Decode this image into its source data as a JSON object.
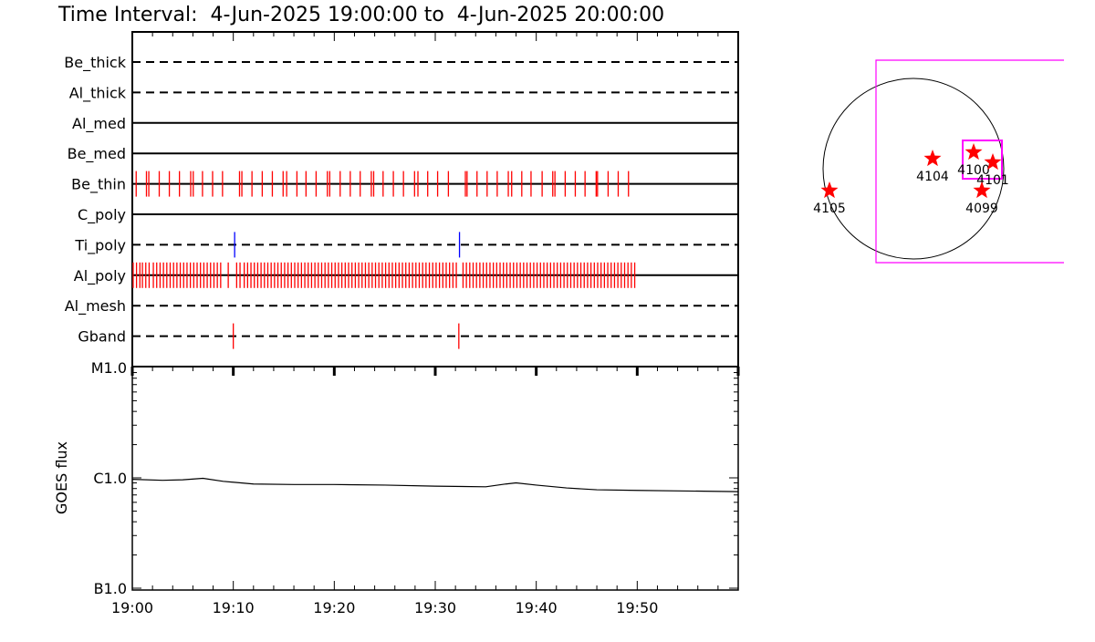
{
  "title": "Time Interval:  4-Jun-2025 19:00:00 to  4-Jun-2025 20:00:00",
  "colors": {
    "obs_tick": "#ff0000",
    "ti_tick": "#0000ff",
    "fov_box": "#ff00ff",
    "star": "#ff0000"
  },
  "chart_data": [
    {
      "type": "timeline",
      "x_range": [
        "19:00",
        "20:00"
      ],
      "x_tick_labels": [
        "19:00",
        "19:10",
        "19:20",
        "19:30",
        "19:40",
        "19:50"
      ],
      "rows": [
        {
          "name": "Be_thick",
          "line": "dashed",
          "times": []
        },
        {
          "name": "Al_thick",
          "line": "dashed",
          "times": []
        },
        {
          "name": "Al_med",
          "line": "solid",
          "times": []
        },
        {
          "name": "Be_med",
          "line": "solid",
          "times": []
        },
        {
          "name": "Be_thin",
          "line": "solid",
          "color": "#ff0000",
          "times": [
            "19:00:23",
            "19:01:24",
            "19:01:38",
            "19:02:40",
            "19:03:40",
            "19:04:40",
            "19:05:47",
            "19:06:02",
            "19:06:57",
            "19:07:57",
            "19:08:56",
            "19:10:37",
            "19:10:51",
            "19:11:51",
            "19:12:52",
            "19:13:52",
            "19:14:56",
            "19:15:17",
            "19:16:18",
            "19:17:12",
            "19:18:12",
            "19:19:19",
            "19:19:33",
            "19:20:35",
            "19:21:35",
            "19:22:34",
            "19:23:40",
            "19:23:54",
            "19:24:50",
            "19:25:51",
            "19:26:51",
            "19:27:57",
            "19:28:17",
            "19:29:15",
            "19:30:14",
            "19:31:18",
            "19:32:59",
            "19:33:09",
            "19:34:08",
            "19:35:08",
            "19:36:08",
            "19:37:14",
            "19:37:34",
            "19:38:34",
            "19:39:29",
            "19:40:35",
            "19:41:38",
            "19:41:51",
            "19:42:52",
            "19:43:52",
            "19:44:50",
            "19:45:56",
            "19:46:04",
            "19:47:07",
            "19:48:07",
            "19:49:08"
          ]
        },
        {
          "name": "C_poly",
          "line": "solid",
          "times": []
        },
        {
          "name": "Ti_poly",
          "line": "dashed",
          "color": "#0000ff",
          "times": [
            "19:10:08",
            "19:32:24"
          ]
        },
        {
          "name": "Al_poly",
          "line": "solid",
          "color": "#ff0000",
          "times": [
            "19:00:05",
            "19:00:25",
            "19:00:45",
            "19:01:00",
            "19:01:20",
            "19:01:40",
            "19:02:05",
            "19:02:25",
            "19:02:45",
            "19:03:05",
            "19:03:25",
            "19:03:45",
            "19:04:05",
            "19:04:25",
            "19:04:45",
            "19:05:05",
            "19:05:25",
            "19:05:45",
            "19:06:05",
            "19:06:25",
            "19:06:45",
            "19:07:05",
            "19:07:25",
            "19:07:45",
            "19:08:05",
            "19:08:25",
            "19:08:45",
            "19:09:30",
            "19:10:20",
            "19:10:40",
            "19:11:05",
            "19:11:25",
            "19:11:45",
            "19:12:05",
            "19:12:25",
            "19:12:45",
            "19:13:05",
            "19:13:25",
            "19:13:45",
            "19:14:05",
            "19:14:25",
            "19:14:45",
            "19:15:05",
            "19:15:25",
            "19:15:45",
            "19:16:05",
            "19:16:25",
            "19:16:45",
            "19:17:05",
            "19:17:25",
            "19:17:45",
            "19:18:05",
            "19:18:25",
            "19:18:45",
            "19:19:05",
            "19:19:25",
            "19:19:45",
            "19:20:05",
            "19:20:25",
            "19:20:45",
            "19:21:05",
            "19:21:25",
            "19:21:45",
            "19:22:05",
            "19:22:25",
            "19:22:45",
            "19:23:05",
            "19:23:25",
            "19:23:45",
            "19:24:05",
            "19:24:25",
            "19:24:45",
            "19:25:05",
            "19:25:25",
            "19:25:45",
            "19:26:05",
            "19:26:25",
            "19:26:45",
            "19:27:05",
            "19:27:25",
            "19:27:45",
            "19:28:05",
            "19:28:25",
            "19:28:45",
            "19:29:05",
            "19:29:25",
            "19:29:45",
            "19:30:05",
            "19:30:25",
            "19:30:45",
            "19:31:05",
            "19:31:25",
            "19:31:45",
            "19:32:05",
            "19:32:45",
            "19:33:05",
            "19:33:25",
            "19:33:45",
            "19:34:05",
            "19:34:25",
            "19:34:45",
            "19:35:05",
            "19:35:25",
            "19:35:45",
            "19:36:05",
            "19:36:25",
            "19:36:45",
            "19:37:05",
            "19:37:25",
            "19:37:45",
            "19:38:05",
            "19:38:25",
            "19:38:45",
            "19:39:05",
            "19:39:25",
            "19:39:45",
            "19:40:05",
            "19:40:25",
            "19:40:45",
            "19:41:05",
            "19:41:25",
            "19:41:45",
            "19:42:05",
            "19:42:25",
            "19:42:45",
            "19:43:05",
            "19:43:25",
            "19:43:45",
            "19:44:05",
            "19:44:25",
            "19:44:45",
            "19:45:05",
            "19:45:25",
            "19:45:45",
            "19:46:05",
            "19:46:25",
            "19:46:45",
            "19:47:05",
            "19:47:25",
            "19:47:45",
            "19:48:05",
            "19:48:25",
            "19:48:45",
            "19:49:05",
            "19:49:25",
            "19:49:45"
          ]
        },
        {
          "name": "Al_mesh",
          "line": "dashed",
          "times": []
        },
        {
          "name": "Gband",
          "line": "dashed",
          "color": "#ff0000",
          "times": [
            "19:10:00",
            "19:32:20"
          ]
        }
      ]
    },
    {
      "type": "line",
      "ylabel": "GOES flux",
      "y_scale": "log",
      "ylim": [
        1e-07,
        1e-05
      ],
      "y_tick_labels": [
        "B1.0",
        "C1.0",
        "M1.0"
      ],
      "x_tick_labels": [
        "19:00",
        "19:10",
        "19:20",
        "19:30",
        "19:40",
        "19:50"
      ],
      "series": [
        {
          "x": [
            "19:00",
            "19:03",
            "19:05",
            "19:07",
            "19:09",
            "19:12",
            "19:16",
            "19:20",
            "19:25",
            "19:30",
            "19:35",
            "19:37",
            "19:38",
            "19:40",
            "19:43",
            "19:46",
            "19:50",
            "19:55",
            "20:00"
          ],
          "y": [
            9.7e-07,
            9.5e-07,
            9.6e-07,
            9.9e-07,
            9.3e-07,
            8.8e-07,
            8.7e-07,
            8.7e-07,
            8.6e-07,
            8.4e-07,
            8.3e-07,
            8.8e-07,
            9e-07,
            8.6e-07,
            8.1e-07,
            7.8e-07,
            7.7e-07,
            7.6e-07,
            7.5e-07
          ]
        }
      ]
    },
    {
      "type": "scatter",
      "regions": [
        {
          "label": "4104"
        },
        {
          "label": "4100"
        },
        {
          "label": "4101"
        },
        {
          "label": "4099"
        },
        {
          "label": "4105"
        }
      ]
    }
  ]
}
